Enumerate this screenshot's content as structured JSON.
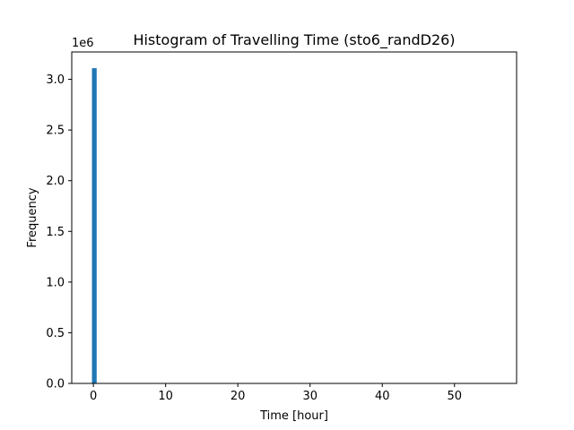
{
  "chart_data": {
    "type": "bar",
    "title": "Histogram of Travelling Time (sto6_randD26)",
    "xlabel": "Time [hour]",
    "ylabel": "Frequency",
    "y_offset_label": "1e6",
    "xlim": [
      -3.0,
      58.6
    ],
    "ylim": [
      0,
      3.27
    ],
    "xticks": [
      0,
      10,
      20,
      30,
      40,
      50
    ],
    "yticks": [
      0.0,
      0.5,
      1.0,
      1.5,
      2.0,
      2.5,
      3.0
    ],
    "xtick_labels": [
      "0",
      "10",
      "20",
      "30",
      "40",
      "50"
    ],
    "ytick_labels": [
      "0.0",
      "0.5",
      "1.0",
      "1.5",
      "2.0",
      "2.5",
      "3.0"
    ],
    "bar_color": "#1f77b4",
    "grid": false,
    "bins": [
      {
        "x0": -0.2,
        "x1": 0.45,
        "value": 3.11
      }
    ]
  }
}
